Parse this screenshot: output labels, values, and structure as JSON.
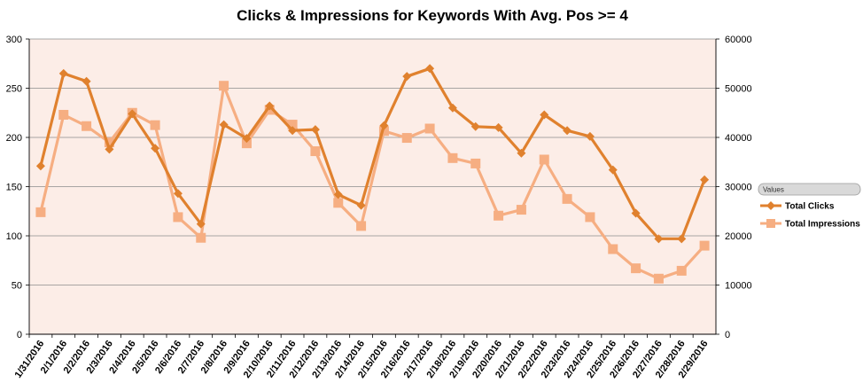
{
  "chart_data": {
    "type": "line",
    "title": "Clicks & Impressions for Keywords With Avg. Pos >= 4",
    "categories": [
      "1/31/2016",
      "2/1/2016",
      "2/2/2016",
      "2/3/2016",
      "2/4/2016",
      "2/5/2016",
      "2/6/2016",
      "2/7/2016",
      "2/8/2016",
      "2/9/2016",
      "2/10/2016",
      "2/11/2016",
      "2/12/2016",
      "2/13/2016",
      "2/14/2016",
      "2/15/2016",
      "2/16/2016",
      "2/17/2016",
      "2/18/2016",
      "2/19/2016",
      "2/20/2016",
      "2/21/2016",
      "2/22/2016",
      "2/23/2016",
      "2/24/2016",
      "2/25/2016",
      "2/26/2016",
      "2/27/2016",
      "2/28/2016",
      "2/29/2016"
    ],
    "series": [
      {
        "name": "Total Clicks",
        "axis": "left",
        "color": "#E0812E",
        "marker": "diamond",
        "values": [
          171,
          265,
          257,
          188,
          224,
          189,
          143,
          112,
          213,
          199,
          232,
          207,
          208,
          142,
          131,
          212,
          262,
          270,
          230,
          211,
          210,
          184,
          223,
          207,
          201,
          167,
          123,
          97,
          97,
          157
        ]
      },
      {
        "name": "Total Impressions",
        "axis": "right",
        "color": "#F6AE82",
        "marker": "square",
        "values": [
          24800,
          44600,
          42300,
          39000,
          45000,
          42500,
          23800,
          19600,
          50500,
          38800,
          45600,
          42600,
          37200,
          26700,
          22000,
          41300,
          39900,
          41800,
          35800,
          34700,
          24100,
          25300,
          35500,
          27500,
          23800,
          17300,
          13400,
          11300,
          12900,
          18000
        ]
      }
    ],
    "y_left": {
      "min": 0,
      "max": 300,
      "ticks": [
        "0",
        "50",
        "100",
        "150",
        "200",
        "250",
        "300"
      ]
    },
    "y_right": {
      "min": 0,
      "max": 60000,
      "ticks": [
        "0",
        "10000",
        "20000",
        "30000",
        "40000",
        "50000",
        "60000"
      ]
    },
    "grid": true,
    "plot_background": "#FCEDE7",
    "legend": {
      "position": "right",
      "header": "Values"
    }
  }
}
